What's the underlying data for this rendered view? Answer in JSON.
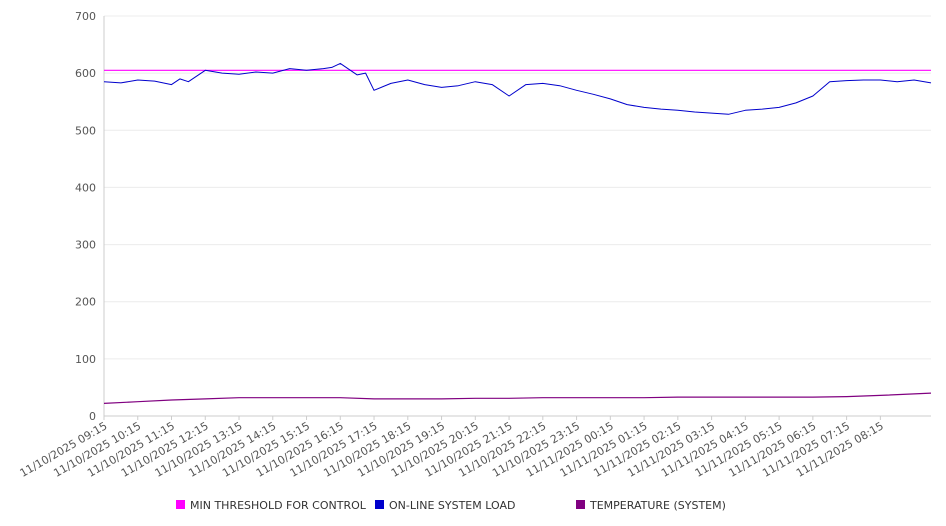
{
  "chart_data": {
    "type": "line",
    "title": "",
    "xlabel": "",
    "ylabel": "",
    "ylim": [
      0,
      700
    ],
    "yticks": [
      0,
      100,
      200,
      300,
      400,
      500,
      600,
      700
    ],
    "grid": true,
    "legend_position": "bottom",
    "x_tick_labels": [
      "11/10/2025 09:15",
      "11/10/2025 10:15",
      "11/10/2025 11:15",
      "11/10/2025 12:15",
      "11/10/2025 13:15",
      "11/10/2025 14:15",
      "11/10/2025 15:15",
      "11/10/2025 16:15",
      "11/10/2025 17:15",
      "11/10/2025 18:15",
      "11/10/2025 19:15",
      "11/10/2025 20:15",
      "11/10/2025 21:15",
      "11/10/2025 22:15",
      "11/10/2025 23:15",
      "11/11/2025 00:15",
      "11/11/2025 01:15",
      "11/11/2025 02:15",
      "11/11/2025 03:15",
      "11/11/2025 04:15",
      "11/11/2025 05:15",
      "11/11/2025 06:15",
      "11/11/2025 07:15",
      "11/11/2025 08:15"
    ],
    "x_range": [
      "11/10/2025 09:15",
      "11/11/2025 09:45"
    ],
    "series": [
      {
        "name": "MIN THRESHOLD FOR CONTROL",
        "color": "#ff00ff",
        "x": [
          "11/10/2025 09:15",
          "11/11/2025 09:45"
        ],
        "y": [
          605,
          605
        ]
      },
      {
        "name": "ON-LINE SYSTEM LOAD",
        "color": "#0000cc",
        "x": [
          "11/10/2025 09:15",
          "11/10/2025 09:45",
          "11/10/2025 10:15",
          "11/10/2025 10:45",
          "11/10/2025 11:15",
          "11/10/2025 11:30",
          "11/10/2025 11:45",
          "11/10/2025 12:15",
          "11/10/2025 12:45",
          "11/10/2025 13:15",
          "11/10/2025 13:45",
          "11/10/2025 14:15",
          "11/10/2025 14:45",
          "11/10/2025 15:15",
          "11/10/2025 15:45",
          "11/10/2025 16:00",
          "11/10/2025 16:15",
          "11/10/2025 16:45",
          "11/10/2025 17:00",
          "11/10/2025 17:15",
          "11/10/2025 17:45",
          "11/10/2025 18:15",
          "11/10/2025 18:45",
          "11/10/2025 19:15",
          "11/10/2025 19:45",
          "11/10/2025 20:15",
          "11/10/2025 20:45",
          "11/10/2025 21:15",
          "11/10/2025 21:45",
          "11/10/2025 22:15",
          "11/10/2025 22:45",
          "11/10/2025 23:15",
          "11/10/2025 23:45",
          "11/11/2025 00:15",
          "11/11/2025 00:45",
          "11/11/2025 01:15",
          "11/11/2025 01:45",
          "11/11/2025 02:15",
          "11/11/2025 02:45",
          "11/11/2025 03:15",
          "11/11/2025 03:45",
          "11/11/2025 04:15",
          "11/11/2025 04:45",
          "11/11/2025 05:15",
          "11/11/2025 05:45",
          "11/11/2025 06:15",
          "11/11/2025 06:45",
          "11/11/2025 07:15",
          "11/11/2025 07:45",
          "11/11/2025 08:15",
          "11/11/2025 08:45",
          "11/11/2025 09:15",
          "11/11/2025 09:45"
        ],
        "y": [
          585,
          583,
          588,
          586,
          580,
          590,
          585,
          605,
          600,
          598,
          602,
          600,
          608,
          605,
          608,
          610,
          617,
          597,
          600,
          570,
          582,
          588,
          580,
          575,
          578,
          585,
          580,
          560,
          580,
          582,
          578,
          570,
          563,
          555,
          545,
          540,
          537,
          535,
          532,
          530,
          528,
          535,
          537,
          540,
          548,
          560,
          585,
          587,
          588,
          588,
          585,
          588,
          583
        ]
      },
      {
        "name": "TEMPERATURE (SYSTEM)",
        "color": "#800080",
        "x": [
          "11/10/2025 09:15",
          "11/10/2025 10:15",
          "11/10/2025 11:15",
          "11/10/2025 12:15",
          "11/10/2025 13:15",
          "11/10/2025 14:15",
          "11/10/2025 15:15",
          "11/10/2025 16:15",
          "11/10/2025 17:15",
          "11/10/2025 18:15",
          "11/10/2025 19:15",
          "11/10/2025 20:15",
          "11/10/2025 21:15",
          "11/10/2025 22:15",
          "11/10/2025 23:15",
          "11/11/2025 00:15",
          "11/11/2025 01:15",
          "11/11/2025 02:15",
          "11/11/2025 03:15",
          "11/11/2025 04:15",
          "11/11/2025 05:15",
          "11/11/2025 06:15",
          "11/11/2025 07:15",
          "11/11/2025 08:15",
          "11/11/2025 09:45"
        ],
        "y": [
          22,
          25,
          28,
          30,
          32,
          32,
          32,
          32,
          30,
          30,
          30,
          31,
          31,
          32,
          32,
          32,
          32,
          33,
          33,
          33,
          33,
          33,
          34,
          36,
          40
        ]
      }
    ]
  }
}
